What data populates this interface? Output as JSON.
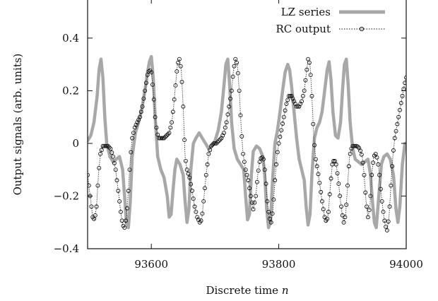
{
  "chart_data": {
    "type": "line",
    "title": "",
    "xlabel": "Discrete time",
    "xlabel_var": "n",
    "ylabel": "Output signals (arb. units)",
    "xlim": [
      93500,
      94000
    ],
    "ylim": [
      -0.4,
      0.55
    ],
    "x_ticks": [
      93600,
      93800,
      94000
    ],
    "x_tick_labels": [
      "93600",
      "93800",
      "94000"
    ],
    "y_ticks": [
      -0.4,
      -0.2,
      0,
      0.2,
      0.4
    ],
    "y_tick_labels": [
      "−0.4",
      "−0.2",
      "0",
      "0.2",
      "0.4"
    ],
    "grid": false,
    "legend_position": "top-right",
    "series": [
      {
        "name": "LZ series",
        "style": "thick-line",
        "color": "#a8a8a8",
        "points": [
          [
            93500,
            0.01
          ],
          [
            93505,
            0.03
          ],
          [
            93510,
            0.08
          ],
          [
            93515,
            0.18
          ],
          [
            93518,
            0.28
          ],
          [
            93521,
            0.32
          ],
          [
            93524,
            0.25
          ],
          [
            93527,
            0.1
          ],
          [
            93530,
            0.0
          ],
          [
            93535,
            -0.05
          ],
          [
            93540,
            -0.07
          ],
          [
            93545,
            -0.06
          ],
          [
            93550,
            -0.05
          ],
          [
            93555,
            -0.1
          ],
          [
            93558,
            -0.2
          ],
          [
            93561,
            -0.3
          ],
          [
            93564,
            -0.32
          ],
          [
            93567,
            -0.22
          ],
          [
            93570,
            -0.05
          ],
          [
            93575,
            0.04
          ],
          [
            93580,
            0.08
          ],
          [
            93585,
            0.13
          ],
          [
            93590,
            0.2
          ],
          [
            93594,
            0.27
          ],
          [
            93597,
            0.31
          ],
          [
            93600,
            0.33
          ],
          [
            93603,
            0.25
          ],
          [
            93606,
            0.1
          ],
          [
            93610,
            -0.05
          ],
          [
            93615,
            -0.1
          ],
          [
            93620,
            -0.13
          ],
          [
            93625,
            -0.2
          ],
          [
            93628,
            -0.28
          ],
          [
            93631,
            -0.27
          ],
          [
            93634,
            -0.18
          ],
          [
            93637,
            -0.1
          ],
          [
            93640,
            -0.06
          ],
          [
            93645,
            -0.08
          ],
          [
            93650,
            -0.12
          ],
          [
            93653,
            -0.22
          ],
          [
            93656,
            -0.3
          ],
          [
            93659,
            -0.25
          ],
          [
            93662,
            -0.1
          ],
          [
            93666,
            0.0
          ],
          [
            93670,
            0.02
          ],
          [
            93675,
            0.04
          ],
          [
            93680,
            0.02
          ],
          [
            93685,
            0.0
          ],
          [
            93690,
            -0.02
          ],
          [
            93695,
            -0.01
          ],
          [
            93700,
            0.01
          ],
          [
            93705,
            0.05
          ],
          [
            93710,
            0.12
          ],
          [
            93714,
            0.22
          ],
          [
            93717,
            0.3
          ],
          [
            93720,
            0.32
          ],
          [
            93723,
            0.22
          ],
          [
            93726,
            0.08
          ],
          [
            93730,
            -0.02
          ],
          [
            93735,
            -0.06
          ],
          [
            93740,
            -0.08
          ],
          [
            93745,
            -0.1
          ],
          [
            93748,
            -0.2
          ],
          [
            93751,
            -0.29
          ],
          [
            93754,
            -0.27
          ],
          [
            93757,
            -0.12
          ],
          [
            93760,
            -0.03
          ],
          [
            93765,
            -0.01
          ],
          [
            93770,
            -0.02
          ],
          [
            93775,
            -0.05
          ],
          [
            93778,
            -0.12
          ],
          [
            93781,
            -0.25
          ],
          [
            93784,
            -0.32
          ],
          [
            93787,
            -0.3
          ],
          [
            93790,
            -0.15
          ],
          [
            93794,
            0.0
          ],
          [
            93798,
            0.05
          ],
          [
            93802,
            0.12
          ],
          [
            93806,
            0.2
          ],
          [
            93810,
            0.27
          ],
          [
            93814,
            0.3
          ],
          [
            93817,
            0.28
          ],
          [
            93820,
            0.22
          ],
          [
            93824,
            0.12
          ],
          [
            93828,
            0.02
          ],
          [
            93832,
            -0.06
          ],
          [
            93836,
            -0.1
          ],
          [
            93840,
            -0.14
          ],
          [
            93843,
            -0.24
          ],
          [
            93846,
            -0.31
          ],
          [
            93849,
            -0.27
          ],
          [
            93852,
            -0.12
          ],
          [
            93856,
            0.02
          ],
          [
            93860,
            0.06
          ],
          [
            93864,
            0.08
          ],
          [
            93868,
            0.12
          ],
          [
            93872,
            0.2
          ],
          [
            93876,
            0.28
          ],
          [
            93879,
            0.31
          ],
          [
            93882,
            0.24
          ],
          [
            93885,
            0.12
          ],
          [
            93889,
            0.03
          ],
          [
            93893,
            0.02
          ],
          [
            93897,
            0.08
          ],
          [
            93900,
            0.2
          ],
          [
            93903,
            0.3
          ],
          [
            93906,
            0.32
          ],
          [
            93909,
            0.22
          ],
          [
            93912,
            0.08
          ],
          [
            93916,
            -0.02
          ],
          [
            93920,
            -0.06
          ],
          [
            93925,
            -0.07
          ],
          [
            93930,
            -0.08
          ],
          [
            93935,
            -0.07
          ],
          [
            93940,
            -0.06
          ],
          [
            93944,
            -0.12
          ],
          [
            93947,
            -0.22
          ],
          [
            93950,
            -0.3
          ],
          [
            93953,
            -0.32
          ],
          [
            93957,
            -0.2
          ],
          [
            93961,
            -0.08
          ],
          [
            93965,
            -0.05
          ],
          [
            93970,
            -0.04
          ],
          [
            93975,
            -0.06
          ],
          [
            93980,
            -0.12
          ],
          [
            93984,
            -0.25
          ],
          [
            93987,
            -0.3
          ],
          [
            93990,
            -0.24
          ],
          [
            93994,
            -0.08
          ],
          [
            93998,
            0.0
          ],
          [
            94000,
            0.0
          ]
        ]
      },
      {
        "name": "RC output",
        "style": "dotted-line-with-open-circles",
        "color": "#111111",
        "points": [
          [
            93500,
            -0.12
          ],
          [
            93504,
            -0.2
          ],
          [
            93508,
            -0.28
          ],
          [
            93511,
            -0.29
          ],
          [
            93514,
            -0.24
          ],
          [
            93517,
            -0.12
          ],
          [
            93520,
            -0.04
          ],
          [
            93524,
            -0.01
          ],
          [
            93528,
            -0.01
          ],
          [
            93532,
            -0.01
          ],
          [
            93536,
            -0.02
          ],
          [
            93540,
            -0.05
          ],
          [
            93544,
            -0.1
          ],
          [
            93548,
            -0.18
          ],
          [
            93552,
            -0.26
          ],
          [
            93555,
            -0.31
          ],
          [
            93558,
            -0.32
          ],
          [
            93561,
            -0.28
          ],
          [
            93564,
            -0.18
          ],
          [
            93567,
            -0.06
          ],
          [
            93570,
            0.02
          ],
          [
            93574,
            0.06
          ],
          [
            93578,
            0.08
          ],
          [
            93582,
            0.1
          ],
          [
            93586,
            0.14
          ],
          [
            93590,
            0.2
          ],
          [
            93594,
            0.26
          ],
          [
            93597,
            0.28
          ],
          [
            93600,
            0.27
          ],
          [
            93603,
            0.2
          ],
          [
            93606,
            0.1
          ],
          [
            93609,
            0.04
          ],
          [
            93612,
            0.02
          ],
          [
            93616,
            0.02
          ],
          [
            93620,
            0.02
          ],
          [
            93624,
            0.03
          ],
          [
            93628,
            0.04
          ],
          [
            93632,
            0.08
          ],
          [
            93635,
            0.14
          ],
          [
            93638,
            0.22
          ],
          [
            93641,
            0.3
          ],
          [
            93644,
            0.32
          ],
          [
            93647,
            0.28
          ],
          [
            93650,
            0.14
          ],
          [
            93653,
            -0.05
          ],
          [
            93656,
            -0.1
          ],
          [
            93660,
            -0.13
          ],
          [
            93664,
            -0.18
          ],
          [
            93668,
            -0.24
          ],
          [
            93672,
            -0.28
          ],
          [
            93676,
            -0.3
          ],
          [
            93679,
            -0.29
          ],
          [
            93682,
            -0.22
          ],
          [
            93686,
            -0.12
          ],
          [
            93690,
            -0.04
          ],
          [
            93694,
            -0.01
          ],
          [
            93698,
            0.0
          ],
          [
            93702,
            0.0
          ],
          [
            93706,
            0.01
          ],
          [
            93710,
            0.02
          ],
          [
            93714,
            0.04
          ],
          [
            93718,
            0.08
          ],
          [
            93722,
            0.14
          ],
          [
            93726,
            0.2
          ],
          [
            93729,
            0.28
          ],
          [
            93732,
            0.32
          ],
          [
            93735,
            0.3
          ],
          [
            93738,
            0.2
          ],
          [
            93741,
            0.06
          ],
          [
            93744,
            -0.04
          ],
          [
            93748,
            -0.1
          ],
          [
            93752,
            -0.14
          ],
          [
            93756,
            -0.2
          ],
          [
            93760,
            -0.25
          ],
          [
            93764,
            -0.2
          ],
          [
            93767,
            -0.12
          ],
          [
            93770,
            -0.07
          ],
          [
            93773,
            -0.05
          ],
          [
            93776,
            -0.06
          ],
          [
            93779,
            -0.12
          ],
          [
            93782,
            -0.22
          ],
          [
            93785,
            -0.28
          ],
          [
            93788,
            -0.3
          ],
          [
            93791,
            -0.25
          ],
          [
            93794,
            -0.14
          ],
          [
            93797,
            -0.05
          ],
          [
            93800,
            0.0
          ],
          [
            93804,
            0.05
          ],
          [
            93808,
            0.1
          ],
          [
            93812,
            0.15
          ],
          [
            93816,
            0.18
          ],
          [
            93820,
            0.18
          ],
          [
            93824,
            0.16
          ],
          [
            93828,
            0.14
          ],
          [
            93832,
            0.14
          ],
          [
            93836,
            0.16
          ],
          [
            93840,
            0.2
          ],
          [
            93843,
            0.26
          ],
          [
            93846,
            0.32
          ],
          [
            93849,
            0.3
          ],
          [
            93852,
            0.18
          ],
          [
            93855,
            0.02
          ],
          [
            93858,
            -0.06
          ],
          [
            93861,
            -0.1
          ],
          [
            93864,
            -0.15
          ],
          [
            93868,
            -0.22
          ],
          [
            93872,
            -0.28
          ],
          [
            93875,
            -0.3
          ],
          [
            93878,
            -0.26
          ],
          [
            93881,
            -0.16
          ],
          [
            93884,
            -0.08
          ],
          [
            93887,
            -0.06
          ],
          [
            93890,
            -0.08
          ],
          [
            93893,
            -0.13
          ],
          [
            93896,
            -0.2
          ],
          [
            93899,
            -0.26
          ],
          [
            93902,
            -0.3
          ],
          [
            93905,
            -0.27
          ],
          [
            93908,
            -0.16
          ],
          [
            93911,
            -0.05
          ],
          [
            93915,
            -0.01
          ],
          [
            93919,
            -0.01
          ],
          [
            93923,
            -0.01
          ],
          [
            93927,
            -0.02
          ],
          [
            93931,
            -0.05
          ],
          [
            93934,
            -0.12
          ],
          [
            93937,
            -0.22
          ],
          [
            93940,
            -0.28
          ],
          [
            93943,
            -0.24
          ],
          [
            93946,
            -0.12
          ],
          [
            93949,
            -0.05
          ],
          [
            93952,
            -0.04
          ],
          [
            93955,
            -0.06
          ],
          [
            93958,
            -0.12
          ],
          [
            93961,
            -0.2
          ],
          [
            93964,
            -0.26
          ],
          [
            93967,
            -0.31
          ],
          [
            93970,
            -0.33
          ],
          [
            93973,
            -0.28
          ],
          [
            93976,
            -0.16
          ],
          [
            93979,
            -0.05
          ],
          [
            93982,
            0.02
          ],
          [
            93985,
            0.06
          ],
          [
            93988,
            0.1
          ],
          [
            93991,
            0.14
          ],
          [
            93994,
            0.18
          ],
          [
            93997,
            0.22
          ],
          [
            94000,
            0.25
          ]
        ]
      }
    ]
  }
}
